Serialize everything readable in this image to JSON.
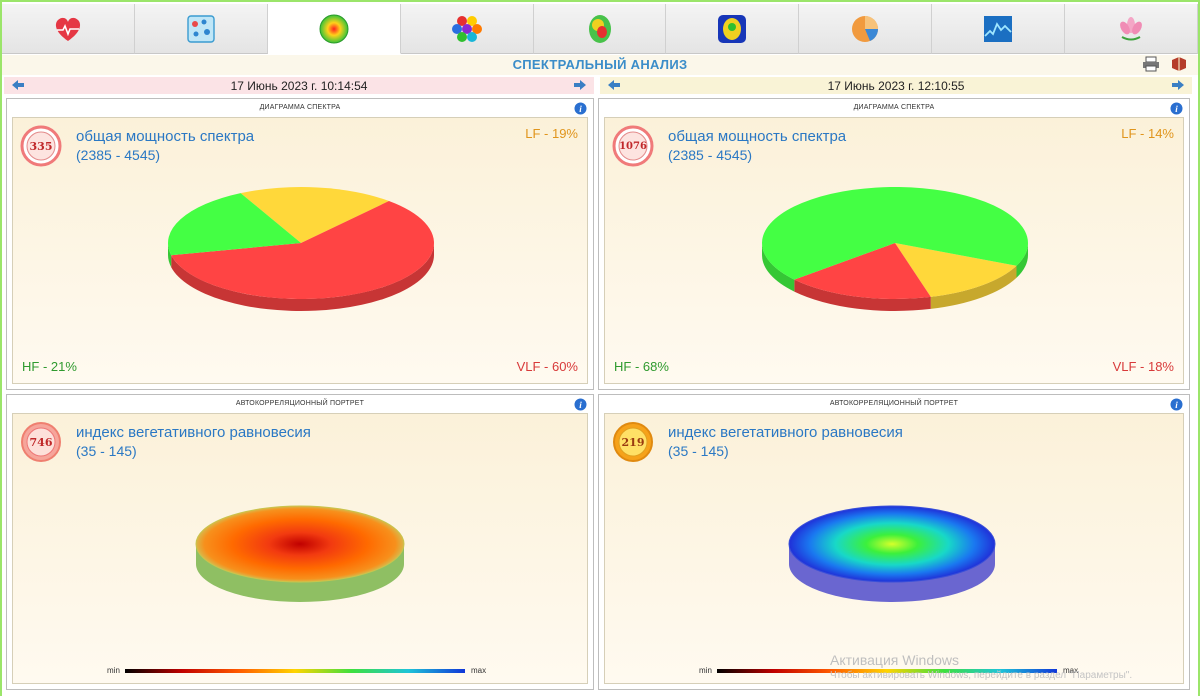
{
  "tabs": [
    {
      "name": "heart-icon"
    },
    {
      "name": "cells-icon"
    },
    {
      "name": "sphere-icon",
      "active": true
    },
    {
      "name": "hexagons-icon"
    },
    {
      "name": "brain-icon"
    },
    {
      "name": "meridian-icon"
    },
    {
      "name": "pie-icon"
    },
    {
      "name": "graph-icon"
    },
    {
      "name": "lotus-icon"
    }
  ],
  "title": "СПЕКТРАЛЬНЫЙ АНАЛИЗ",
  "dates": {
    "left": "17 Июнь 2023 г. 10:14:54",
    "right": "17 Июнь 2023 г. 12:10:55"
  },
  "panels": {
    "spectrum_title": "ДИАГРАММА СПЕКТРА",
    "portrait_title": "АВТОКОРРЕЛЯЦИОННЫЙ ПОРТРЕТ",
    "spectrum_label": "общая мощность спектра",
    "spectrum_range": "(2385 - 4545)",
    "portrait_label": "индекс вегетативного равновесия",
    "portrait_range": "(35 - 145)",
    "scale_min": "min",
    "scale_max": "max"
  },
  "left": {
    "spectrum_value": "335",
    "lf": "LF - 19%",
    "hf": "HF - 21%",
    "vlf": "VLF - 60%",
    "portrait_value": "746"
  },
  "right": {
    "spectrum_value": "1076",
    "lf": "LF - 14%",
    "hf": "HF - 68%",
    "vlf": "VLF - 18%",
    "portrait_value": "219"
  },
  "watermark": {
    "line1": "Активация Windows",
    "line2": "Чтобы активировать Windows, перейдите в раздел \"Параметры\"."
  },
  "colors": {
    "lf": "#ffd83a",
    "hf": "#44ff44",
    "vlf": "#ff4444"
  },
  "chart_data": [
    {
      "type": "pie",
      "title": "ДИАГРАММА СПЕКТРА",
      "categories": [
        "LF",
        "VLF",
        "HF"
      ],
      "values": [
        19,
        60,
        21
      ]
    },
    {
      "type": "pie",
      "title": "ДИАГРАММА СПЕКТРА",
      "categories": [
        "LF",
        "VLF",
        "HF"
      ],
      "values": [
        14,
        18,
        68
      ]
    }
  ]
}
